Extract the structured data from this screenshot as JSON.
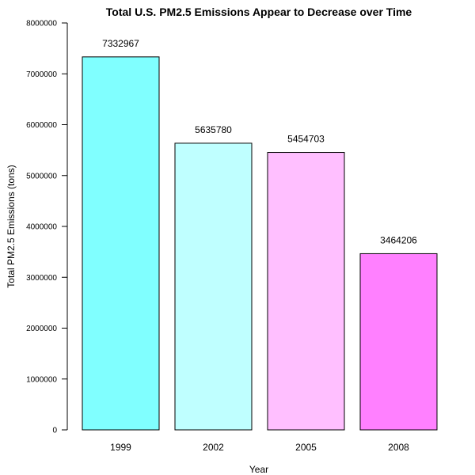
{
  "chart_data": {
    "type": "bar",
    "title": "Total U.S. PM2.5 Emissions Appear to Decrease over Time",
    "xlabel": "Year",
    "ylabel": "Total PM2.5 Emissions (tons)",
    "categories": [
      "1999",
      "2002",
      "2005",
      "2008"
    ],
    "values": [
      7332967,
      5635780,
      5454703,
      3464206
    ],
    "data_labels": [
      "7332967",
      "5635780",
      "5454703",
      "3464206"
    ],
    "bar_colors": [
      "#80FFFF",
      "#BFFFFF",
      "#FFBFFF",
      "#FF80FF"
    ],
    "ylim": [
      0,
      8000000
    ],
    "yticks": [
      0,
      1000000,
      2000000,
      3000000,
      4000000,
      5000000,
      6000000,
      7000000,
      8000000
    ],
    "ytick_labels": [
      "0",
      "1000000",
      "2000000",
      "3000000",
      "4000000",
      "5000000",
      "6000000",
      "7000000",
      "8000000"
    ],
    "grid": false,
    "legend": "none"
  }
}
